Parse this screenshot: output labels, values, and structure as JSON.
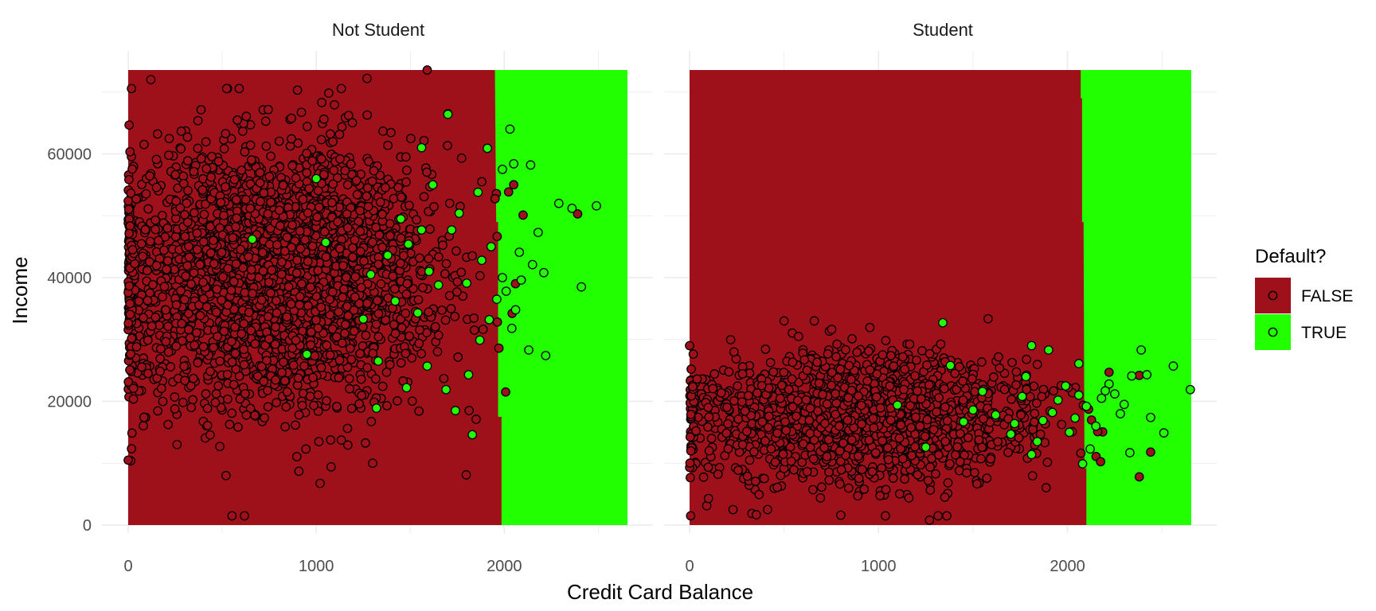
{
  "chart_data": {
    "type": "scatter",
    "xlabel": "Credit Card Balance",
    "ylabel": "Income",
    "xlim": [
      0,
      2655
    ],
    "ylim": [
      0,
      73554
    ],
    "x_ticks": [
      "0",
      "1000",
      "2000"
    ],
    "x_tick_values": [
      0,
      1000,
      2000
    ],
    "y_ticks": [
      "0",
      "20000",
      "40000",
      "60000"
    ],
    "y_tick_values": [
      0,
      20000,
      40000,
      60000
    ],
    "grid": true,
    "legend": {
      "title": "Default?",
      "placement": "right",
      "entries": [
        {
          "label": "FALSE",
          "fill": "#9E111A",
          "point": "#9E111A"
        },
        {
          "label": "TRUE",
          "fill": "#22FF00",
          "point": "#22FF00"
        }
      ]
    },
    "colors": {
      "false_region": "#9E111A",
      "true_region": "#22FF00",
      "point_stroke": "#000000",
      "grid": "#EBEBEB"
    },
    "panels": [
      {
        "label": "Not Student",
        "decision_boundary": [
          {
            "income": 0,
            "balance": 1985
          },
          {
            "income": 17500,
            "balance": 1985
          },
          {
            "income": 17500,
            "balance": 1967
          },
          {
            "income": 49000,
            "balance": 1967
          },
          {
            "income": 49000,
            "balance": 1957
          },
          {
            "income": 73554,
            "balance": 1950
          }
        ],
        "cloud": {
          "x_mean": 770,
          "x_sd": 430,
          "x_max": 2060,
          "y_mean": 40500,
          "y_sd": 10500,
          "n": 2800
        },
        "points_false": [
          {
            "x": 1590,
            "y": 73554
          },
          {
            "x": 2050,
            "y": 55000
          },
          {
            "x": 2100,
            "y": 50100
          },
          {
            "x": 2390,
            "y": 50300
          },
          {
            "x": 0,
            "y": 10500
          },
          {
            "x": 520,
            "y": 8000
          },
          {
            "x": 1300,
            "y": 10000
          },
          {
            "x": 120,
            "y": 72000
          },
          {
            "x": 900,
            "y": 70300
          },
          {
            "x": 1270,
            "y": 72200
          },
          {
            "x": 1700,
            "y": 66500
          }
        ],
        "points_true": [
          {
            "x": 2030,
            "y": 64000
          },
          {
            "x": 2140,
            "y": 58200
          },
          {
            "x": 2290,
            "y": 52000
          },
          {
            "x": 2360,
            "y": 51200
          },
          {
            "x": 2490,
            "y": 51600
          },
          {
            "x": 2410,
            "y": 38500
          },
          {
            "x": 2220,
            "y": 27400
          },
          {
            "x": 2130,
            "y": 28300
          },
          {
            "x": 2040,
            "y": 31800
          },
          {
            "x": 2180,
            "y": 47300
          },
          {
            "x": 2080,
            "y": 44100
          },
          {
            "x": 1830,
            "y": 14600
          },
          {
            "x": 1700,
            "y": 66400
          },
          {
            "x": 1860,
            "y": 53800
          },
          {
            "x": 1990,
            "y": 40000
          },
          {
            "x": 1960,
            "y": 36500
          },
          {
            "x": 1930,
            "y": 45000
          },
          {
            "x": 1880,
            "y": 42800
          },
          {
            "x": 1760,
            "y": 50400
          },
          {
            "x": 1720,
            "y": 47700
          },
          {
            "x": 1650,
            "y": 38800
          },
          {
            "x": 1600,
            "y": 41000
          },
          {
            "x": 1560,
            "y": 47700
          },
          {
            "x": 1540,
            "y": 34300
          },
          {
            "x": 1490,
            "y": 45400
          },
          {
            "x": 1450,
            "y": 49500
          },
          {
            "x": 1420,
            "y": 36200
          },
          {
            "x": 1380,
            "y": 43600
          },
          {
            "x": 1330,
            "y": 26500
          },
          {
            "x": 1290,
            "y": 40500
          },
          {
            "x": 1250,
            "y": 33300
          },
          {
            "x": 1050,
            "y": 45700
          },
          {
            "x": 1000,
            "y": 56000
          },
          {
            "x": 950,
            "y": 27600
          },
          {
            "x": 660,
            "y": 46200
          },
          {
            "x": 1740,
            "y": 18500
          },
          {
            "x": 1690,
            "y": 21900
          },
          {
            "x": 1590,
            "y": 25700
          },
          {
            "x": 1480,
            "y": 22200
          },
          {
            "x": 1320,
            "y": 18900
          },
          {
            "x": 1810,
            "y": 24300
          },
          {
            "x": 1870,
            "y": 29900
          },
          {
            "x": 2060,
            "y": 34800
          },
          {
            "x": 2090,
            "y": 39600
          },
          {
            "x": 2150,
            "y": 42100
          },
          {
            "x": 2010,
            "y": 37800
          },
          {
            "x": 1920,
            "y": 33200
          },
          {
            "x": 1800,
            "y": 39100
          },
          {
            "x": 1620,
            "y": 55000
          },
          {
            "x": 1560,
            "y": 61000
          },
          {
            "x": 1910,
            "y": 60900
          },
          {
            "x": 1990,
            "y": 57500
          },
          {
            "x": 2210,
            "y": 40800
          },
          {
            "x": 2050,
            "y": 58400
          }
        ]
      },
      {
        "label": "Student",
        "decision_boundary": [
          {
            "income": 0,
            "balance": 2100
          },
          {
            "income": 9200,
            "balance": 2100
          },
          {
            "income": 9200,
            "balance": 2090
          },
          {
            "income": 49000,
            "balance": 2085
          },
          {
            "income": 49000,
            "balance": 2077
          },
          {
            "income": 69000,
            "balance": 2077
          },
          {
            "income": 69000,
            "balance": 2070
          },
          {
            "income": 73554,
            "balance": 2070
          }
        ],
        "cloud": {
          "x_mean": 880,
          "x_sd": 470,
          "x_max": 2200,
          "y_mean": 17500,
          "y_sd": 5200,
          "n": 1500
        },
        "points_false": [
          {
            "x": 1270,
            "y": 800
          },
          {
            "x": 2380,
            "y": 7800
          },
          {
            "x": 0,
            "y": 29000
          },
          {
            "x": 500,
            "y": 33000
          },
          {
            "x": 660,
            "y": 33000
          },
          {
            "x": 2220,
            "y": 24700
          },
          {
            "x": 2380,
            "y": 24200
          },
          {
            "x": 2160,
            "y": 15100
          },
          {
            "x": 2440,
            "y": 11800
          },
          {
            "x": 100,
            "y": 4300
          },
          {
            "x": 230,
            "y": 2500
          },
          {
            "x": 800,
            "y": 1600
          }
        ],
        "points_true": [
          {
            "x": 2650,
            "y": 21900
          },
          {
            "x": 2560,
            "y": 25700
          },
          {
            "x": 2390,
            "y": 28300
          },
          {
            "x": 2510,
            "y": 14900
          },
          {
            "x": 2440,
            "y": 17400
          },
          {
            "x": 2340,
            "y": 24100
          },
          {
            "x": 2300,
            "y": 19500
          },
          {
            "x": 2280,
            "y": 18000
          },
          {
            "x": 2250,
            "y": 21200
          },
          {
            "x": 2220,
            "y": 22800
          },
          {
            "x": 2180,
            "y": 20500
          },
          {
            "x": 2150,
            "y": 16000
          },
          {
            "x": 2120,
            "y": 12300
          },
          {
            "x": 2100,
            "y": 19200
          },
          {
            "x": 2060,
            "y": 26100
          },
          {
            "x": 2040,
            "y": 17300
          },
          {
            "x": 2010,
            "y": 15000
          },
          {
            "x": 1950,
            "y": 20200
          },
          {
            "x": 1900,
            "y": 28300
          },
          {
            "x": 1870,
            "y": 16900
          },
          {
            "x": 1810,
            "y": 29000
          },
          {
            "x": 1810,
            "y": 11400
          },
          {
            "x": 1760,
            "y": 20800
          },
          {
            "x": 1700,
            "y": 14700
          },
          {
            "x": 1620,
            "y": 17800
          },
          {
            "x": 1550,
            "y": 21600
          },
          {
            "x": 1500,
            "y": 18600
          },
          {
            "x": 1450,
            "y": 16700
          },
          {
            "x": 1380,
            "y": 25800
          },
          {
            "x": 1340,
            "y": 32700
          },
          {
            "x": 1250,
            "y": 12600
          },
          {
            "x": 1100,
            "y": 19400
          },
          {
            "x": 2080,
            "y": 9900
          },
          {
            "x": 2330,
            "y": 11700
          },
          {
            "x": 2420,
            "y": 24300
          },
          {
            "x": 2200,
            "y": 21700
          },
          {
            "x": 2060,
            "y": 21000
          },
          {
            "x": 1990,
            "y": 22500
          },
          {
            "x": 1920,
            "y": 18200
          },
          {
            "x": 1840,
            "y": 13500
          },
          {
            "x": 1780,
            "y": 24000
          },
          {
            "x": 1720,
            "y": 16400
          }
        ]
      }
    ]
  }
}
